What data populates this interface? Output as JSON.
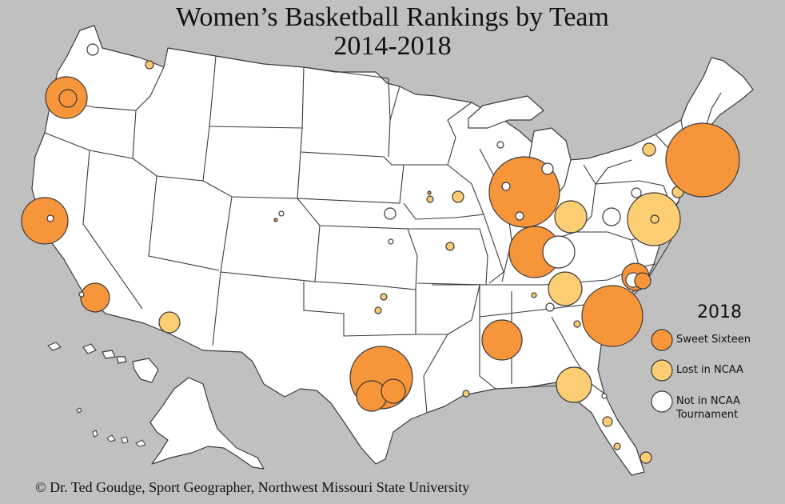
{
  "title": {
    "line1": "Women’s Basketball Rankings by Team",
    "line2": "2014-2018"
  },
  "legend": {
    "year": "2018",
    "items": [
      {
        "label": "Sweet Sixteen",
        "color": "#f7953a"
      },
      {
        "label": "Lost in NCAA",
        "color": "#fdcd74"
      },
      {
        "label": "Not in NCAA Tournament",
        "color": "#ffffff"
      }
    ]
  },
  "credit": "© Dr. Ted Goudge, Sport Geographer, Northwest Missouri State University",
  "colors": {
    "background": "#c0c0c0",
    "land": "#ffffff",
    "border": "#3a3a3a",
    "sweet_sixteen": "#f7953a",
    "lost_in_ncaa": "#fdcd74",
    "not_in_ncaa": "#ffffff"
  }
}
